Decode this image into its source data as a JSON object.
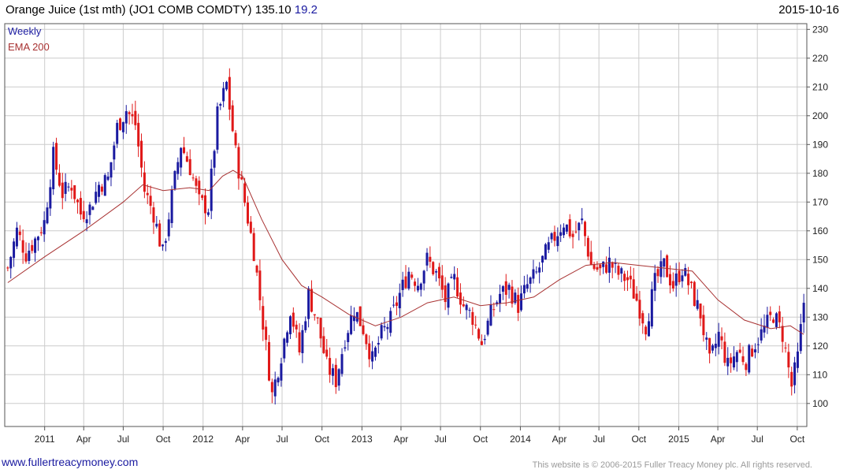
{
  "header": {
    "title": "Orange Juice (1st mth)  (JO1 COMB COMDTY) 135.10",
    "change": "19.2",
    "date": "2015-10-16"
  },
  "legend": {
    "weekly": "Weekly",
    "ema": "EMA 200"
  },
  "footer": {
    "url": "www.fullertreacymoney.com",
    "copyright": "This website is © 2006-2015 Fuller Treacy Money plc. All rights reserved."
  },
  "colors": {
    "up": "#1a1aa0",
    "down": "#e01818",
    "ema": "#a83232",
    "grid": "#cccccc"
  },
  "chart_data": {
    "type": "candlestick",
    "title": "Orange Juice (1st mth)  (JO1 COMB COMDTY) 135.10",
    "ylim": [
      92,
      232
    ],
    "y_ticks": [
      100,
      110,
      120,
      130,
      140,
      150,
      160,
      170,
      180,
      190,
      200,
      210,
      220,
      230
    ],
    "x_range": [
      "2010-10-01",
      "2015-10-23"
    ],
    "x_ticks": [
      {
        "label": "2011",
        "date": "2011-01-01"
      },
      {
        "label": "Apr",
        "date": "2011-04-01"
      },
      {
        "label": "Jul",
        "date": "2011-07-01"
      },
      {
        "label": "Oct",
        "date": "2011-10-01"
      },
      {
        "label": "2012",
        "date": "2012-01-01"
      },
      {
        "label": "Apr",
        "date": "2012-04-01"
      },
      {
        "label": "Jul",
        "date": "2012-07-01"
      },
      {
        "label": "Oct",
        "date": "2012-10-01"
      },
      {
        "label": "2013",
        "date": "2013-01-01"
      },
      {
        "label": "Apr",
        "date": "2013-04-01"
      },
      {
        "label": "Jul",
        "date": "2013-07-01"
      },
      {
        "label": "Oct",
        "date": "2013-10-01"
      },
      {
        "label": "2014",
        "date": "2014-01-01"
      },
      {
        "label": "Apr",
        "date": "2014-04-01"
      },
      {
        "label": "Jul",
        "date": "2014-07-01"
      },
      {
        "label": "Oct",
        "date": "2014-10-01"
      },
      {
        "label": "2015",
        "date": "2015-01-01"
      },
      {
        "label": "Apr",
        "date": "2015-04-01"
      },
      {
        "label": "Jul",
        "date": "2015-07-01"
      },
      {
        "label": "Oct",
        "date": "2015-10-01"
      }
    ],
    "grid": true,
    "legend_position": "top-left",
    "series": [
      {
        "name": "Weekly",
        "kind": "ohlc-weekly-close-path",
        "points": [
          {
            "date": "2010-10-08",
            "close": 147
          },
          {
            "date": "2010-10-29",
            "close": 160
          },
          {
            "date": "2010-11-19",
            "close": 152
          },
          {
            "date": "2010-12-10",
            "close": 157
          },
          {
            "date": "2010-12-31",
            "close": 163
          },
          {
            "date": "2011-01-21",
            "close": 186
          },
          {
            "date": "2011-02-11",
            "close": 173
          },
          {
            "date": "2011-03-04",
            "close": 176
          },
          {
            "date": "2011-03-25",
            "close": 166
          },
          {
            "date": "2011-04-15",
            "close": 168
          },
          {
            "date": "2011-05-06",
            "close": 176
          },
          {
            "date": "2011-05-27",
            "close": 178
          },
          {
            "date": "2011-06-17",
            "close": 196
          },
          {
            "date": "2011-07-08",
            "close": 202
          },
          {
            "date": "2011-07-29",
            "close": 197
          },
          {
            "date": "2011-08-19",
            "close": 174
          },
          {
            "date": "2011-09-09",
            "close": 166
          },
          {
            "date": "2011-09-30",
            "close": 152
          },
          {
            "date": "2011-10-21",
            "close": 172
          },
          {
            "date": "2011-11-11",
            "close": 190
          },
          {
            "date": "2011-12-02",
            "close": 182
          },
          {
            "date": "2011-12-23",
            "close": 170
          },
          {
            "date": "2012-01-13",
            "close": 168
          },
          {
            "date": "2012-02-03",
            "close": 200
          },
          {
            "date": "2012-02-24",
            "close": 211
          },
          {
            "date": "2012-03-16",
            "close": 187
          },
          {
            "date": "2012-04-06",
            "close": 170
          },
          {
            "date": "2012-04-27",
            "close": 153
          },
          {
            "date": "2012-05-18",
            "close": 128
          },
          {
            "date": "2012-06-08",
            "close": 103
          },
          {
            "date": "2012-06-29",
            "close": 117
          },
          {
            "date": "2012-07-20",
            "close": 133
          },
          {
            "date": "2012-08-10",
            "close": 118
          },
          {
            "date": "2012-08-31",
            "close": 138
          },
          {
            "date": "2012-09-21",
            "close": 128
          },
          {
            "date": "2012-10-12",
            "close": 113
          },
          {
            "date": "2012-11-02",
            "close": 108
          },
          {
            "date": "2012-11-23",
            "close": 123
          },
          {
            "date": "2012-12-14",
            "close": 133
          },
          {
            "date": "2013-01-04",
            "close": 126
          },
          {
            "date": "2013-01-25",
            "close": 115
          },
          {
            "date": "2013-02-15",
            "close": 124
          },
          {
            "date": "2013-03-08",
            "close": 129
          },
          {
            "date": "2013-03-29",
            "close": 138
          },
          {
            "date": "2013-04-19",
            "close": 146
          },
          {
            "date": "2013-05-10",
            "close": 142
          },
          {
            "date": "2013-05-31",
            "close": 150
          },
          {
            "date": "2013-06-21",
            "close": 145
          },
          {
            "date": "2013-07-12",
            "close": 136
          },
          {
            "date": "2013-08-02",
            "close": 143
          },
          {
            "date": "2013-08-23",
            "close": 134
          },
          {
            "date": "2013-09-13",
            "close": 130
          },
          {
            "date": "2013-10-04",
            "close": 121
          },
          {
            "date": "2013-10-25",
            "close": 131
          },
          {
            "date": "2013-11-15",
            "close": 138
          },
          {
            "date": "2013-12-06",
            "close": 140
          },
          {
            "date": "2013-12-27",
            "close": 134
          },
          {
            "date": "2014-01-17",
            "close": 141
          },
          {
            "date": "2014-02-07",
            "close": 145
          },
          {
            "date": "2014-02-28",
            "close": 152
          },
          {
            "date": "2014-03-21",
            "close": 158
          },
          {
            "date": "2014-04-11",
            "close": 163
          },
          {
            "date": "2014-05-02",
            "close": 158
          },
          {
            "date": "2014-05-23",
            "close": 163
          },
          {
            "date": "2014-06-13",
            "close": 148
          },
          {
            "date": "2014-07-04",
            "close": 146
          },
          {
            "date": "2014-07-25",
            "close": 149
          },
          {
            "date": "2014-08-15",
            "close": 145
          },
          {
            "date": "2014-09-05",
            "close": 143
          },
          {
            "date": "2014-09-26",
            "close": 136
          },
          {
            "date": "2014-10-17",
            "close": 127
          },
          {
            "date": "2014-11-07",
            "close": 142
          },
          {
            "date": "2014-11-28",
            "close": 148
          },
          {
            "date": "2014-12-19",
            "close": 141
          },
          {
            "date": "2015-01-09",
            "close": 147
          },
          {
            "date": "2015-01-30",
            "close": 139
          },
          {
            "date": "2015-02-20",
            "close": 131
          },
          {
            "date": "2015-03-13",
            "close": 114
          },
          {
            "date": "2015-04-03",
            "close": 124
          },
          {
            "date": "2015-04-24",
            "close": 113
          },
          {
            "date": "2015-05-15",
            "close": 118
          },
          {
            "date": "2015-06-05",
            "close": 115
          },
          {
            "date": "2015-06-26",
            "close": 121
          },
          {
            "date": "2015-07-17",
            "close": 126
          },
          {
            "date": "2015-08-07",
            "close": 131
          },
          {
            "date": "2015-08-28",
            "close": 124
          },
          {
            "date": "2015-09-18",
            "close": 106
          },
          {
            "date": "2015-10-02",
            "close": 116
          },
          {
            "date": "2015-10-16",
            "close": 135
          }
        ]
      },
      {
        "name": "EMA 200",
        "kind": "line",
        "points": [
          {
            "date": "2010-10-08",
            "value": 142
          },
          {
            "date": "2011-01-01",
            "value": 151
          },
          {
            "date": "2011-04-01",
            "value": 160
          },
          {
            "date": "2011-07-01",
            "value": 170
          },
          {
            "date": "2011-08-15",
            "value": 176
          },
          {
            "date": "2011-10-01",
            "value": 174
          },
          {
            "date": "2011-12-01",
            "value": 175
          },
          {
            "date": "2012-01-15",
            "value": 174
          },
          {
            "date": "2012-02-15",
            "value": 179
          },
          {
            "date": "2012-03-10",
            "value": 181
          },
          {
            "date": "2012-04-01",
            "value": 179
          },
          {
            "date": "2012-05-15",
            "value": 164
          },
          {
            "date": "2012-07-01",
            "value": 150
          },
          {
            "date": "2012-08-15",
            "value": 141
          },
          {
            "date": "2012-10-01",
            "value": 137
          },
          {
            "date": "2012-12-01",
            "value": 131
          },
          {
            "date": "2013-02-01",
            "value": 127
          },
          {
            "date": "2013-04-01",
            "value": 130
          },
          {
            "date": "2013-06-01",
            "value": 135
          },
          {
            "date": "2013-08-01",
            "value": 137
          },
          {
            "date": "2013-10-01",
            "value": 134
          },
          {
            "date": "2013-12-01",
            "value": 135
          },
          {
            "date": "2014-02-01",
            "value": 137
          },
          {
            "date": "2014-04-01",
            "value": 143
          },
          {
            "date": "2014-06-01",
            "value": 148
          },
          {
            "date": "2014-08-01",
            "value": 149
          },
          {
            "date": "2014-10-01",
            "value": 148
          },
          {
            "date": "2014-12-01",
            "value": 147
          },
          {
            "date": "2015-02-01",
            "value": 146
          },
          {
            "date": "2015-04-01",
            "value": 136
          },
          {
            "date": "2015-06-01",
            "value": 129
          },
          {
            "date": "2015-08-01",
            "value": 126
          },
          {
            "date": "2015-09-15",
            "value": 127
          },
          {
            "date": "2015-10-16",
            "value": 124
          }
        ]
      }
    ]
  }
}
